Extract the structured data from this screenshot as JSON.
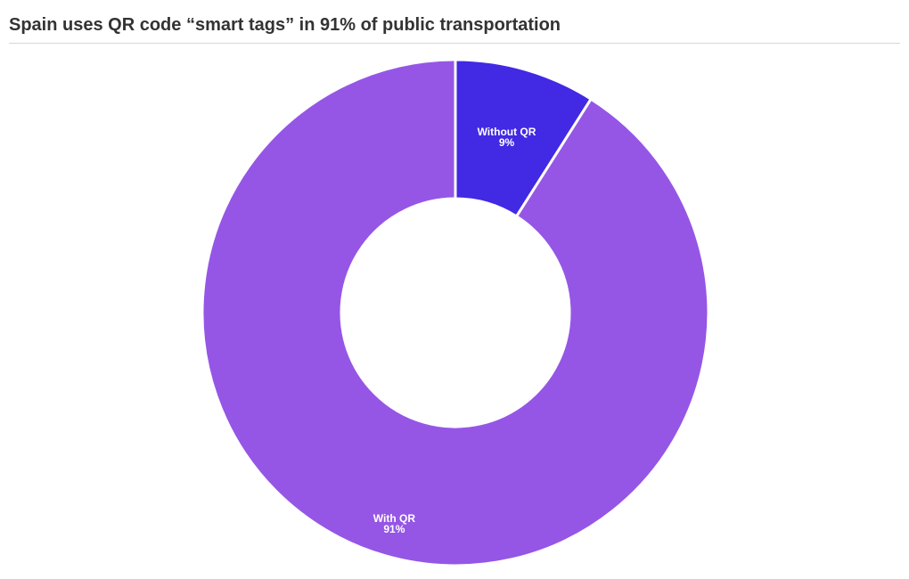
{
  "chart_data": {
    "type": "pie",
    "title": "Spain uses QR code “smart tags” in 91% of public transportation",
    "slices": [
      {
        "label": "Without QR",
        "value": 9,
        "value_label": "9%",
        "color": "#4229e3"
      },
      {
        "label": "With QR",
        "value": 91,
        "value_label": "91%",
        "color": "#9556e6"
      }
    ],
    "donut": true,
    "label_color": "#ffffff",
    "legend": "none"
  }
}
